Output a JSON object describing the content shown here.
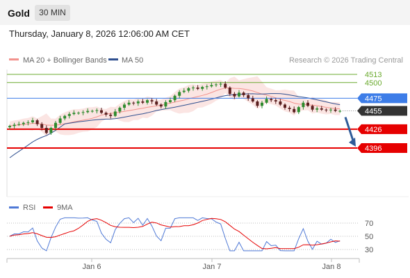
{
  "header": {
    "title": "Gold",
    "timeframe": "30 MIN",
    "datetime": "Thursday, January 8, 2026 12:06:00 AM CET"
  },
  "legend": {
    "bb_label": "MA 20 + Bollinger Bands",
    "bb_color": "#f2928d",
    "ma50_label": "MA 50",
    "ma50_color": "#2f4f8f",
    "copyright": "Research © 2026 Trading Central"
  },
  "levels": [
    {
      "value": "4513",
      "kind": "minor",
      "color": "#6aaa2e"
    },
    {
      "value": "4500",
      "kind": "minor",
      "color": "#6aaa2e"
    },
    {
      "value": "4475",
      "kind": "pivot",
      "color": "#3d7de8"
    },
    {
      "value": "4455",
      "kind": "last",
      "color": "#333333"
    },
    {
      "value": "4426",
      "kind": "support",
      "color": "#e60000"
    },
    {
      "value": "4396",
      "kind": "support",
      "color": "#e60000"
    }
  ],
  "rsi_legend": {
    "rsi_label": "RSI",
    "rsi_color": "#4f79d6",
    "ma9_label": "9MA",
    "ma9_color": "#e60000"
  },
  "rsi_ticks": [
    "70",
    "50",
    "30"
  ],
  "x_ticks": [
    "Jan 6",
    "Jan 7",
    "Jan 8"
  ],
  "colors": {
    "up": "#2e8b2e",
    "down": "#5a1e1e",
    "band": "#f9d3d0",
    "arrow": "#2e5c99"
  },
  "chart_data": {
    "type": "candlestick",
    "instrument": "Gold",
    "timeframe": "30 MIN",
    "price_levels": [
      4513,
      4500,
      4475,
      4455,
      4426,
      4396
    ],
    "last_price": 4455,
    "pivot": 4475,
    "supports": [
      4426,
      4396
    ],
    "resistances": [
      4500,
      4513
    ],
    "arrow": {
      "from": 4455,
      "to": 4396
    },
    "rsi_levels": [
      70,
      50,
      30
    ],
    "x_ticks": [
      "Jan 6",
      "Jan 7",
      "Jan 8"
    ],
    "close_series": [
      4431,
      4433,
      4434,
      4436,
      4437,
      4440,
      4434,
      4428,
      4420,
      4428,
      4436,
      4443,
      4447,
      4450,
      4452,
      4452,
      4453,
      4455,
      4455,
      4456,
      4452,
      4449,
      4447,
      4454,
      4460,
      4465,
      4468,
      4467,
      4470,
      4468,
      4472,
      4470,
      4465,
      4462,
      4469,
      4472,
      4479,
      4485,
      4487,
      4491,
      4492,
      4490,
      4493,
      4494,
      4496,
      4497,
      4498,
      4492,
      4482,
      4478,
      4484,
      4480,
      4475,
      4470,
      4463,
      4468,
      4474,
      4472,
      4470,
      4465,
      4460,
      4458,
      4453,
      4461,
      4468,
      4463,
      4457,
      4459,
      4457,
      4456,
      4457,
      4455,
      4455
    ]
  }
}
